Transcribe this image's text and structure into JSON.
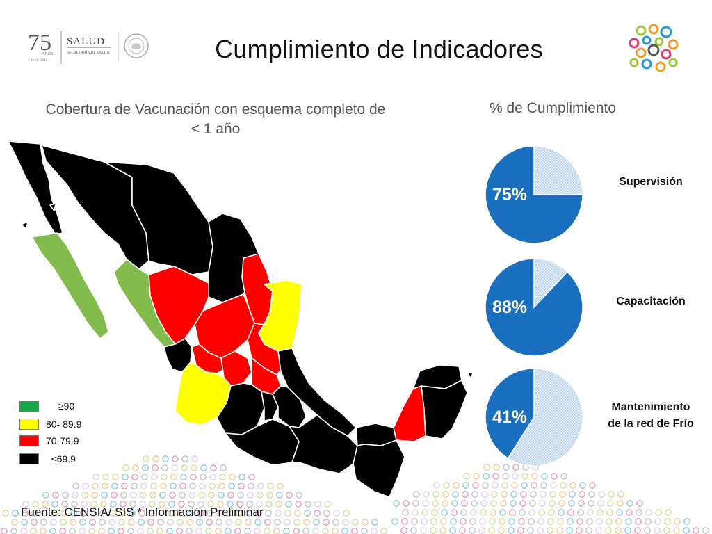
{
  "header": {
    "title": "Cumplimiento de Indicadores",
    "logo_number": "75",
    "logo_anos": "AÑOS",
    "logo_years": "1943 - 2018",
    "logo_salud": "SALUD",
    "logo_secretaria": "SECRETARÍA DE SALUD"
  },
  "map": {
    "title": "Cobertura de Vacunación con esquema completo de < 1 año",
    "title_line1": "Cobertura de Vacunación con esquema completo de",
    "title_line2": "< 1 año",
    "legend": [
      {
        "label": "≥90",
        "color": "#1aa64a"
      },
      {
        "label": "80- 89.9",
        "color": "#ffff00"
      },
      {
        "label": "70-79.9",
        "color": "#ff0000"
      },
      {
        "label": "≤69.9",
        "color": "#000000"
      }
    ],
    "region_colors": {
      "green": "#82bc4c",
      "yellow": "#ffff00",
      "red": "#ff0000",
      "black": "#000000"
    }
  },
  "chart_data": {
    "type": "pie",
    "title": "% de Cumplimiento",
    "series": [
      {
        "name": "Supervisión",
        "value": 75
      },
      {
        "name": "Capacitación",
        "value": 88
      },
      {
        "name": "Mantenimiento de la red de Frío",
        "value": 41
      }
    ],
    "value_labels": [
      "75%",
      "88%",
      "41%"
    ],
    "label_lines": [
      [
        "Supervisión"
      ],
      [
        "Capacitación"
      ],
      [
        "Mantenimiento",
        "de la red de Frío"
      ]
    ],
    "colors": {
      "filled": "#1a6fbf",
      "remaining": "#d4e3f2"
    }
  },
  "footer": {
    "source": "Fuente: CENSIA/ SIS * Información Preliminar"
  }
}
